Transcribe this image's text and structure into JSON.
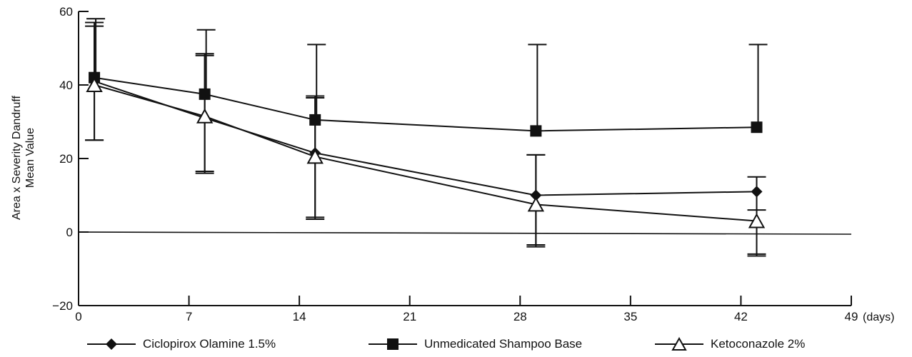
{
  "chart_data": {
    "type": "line",
    "title": "",
    "xlabel": "(days)",
    "ylabel_lines": [
      "Area x Severity Dandruff",
      "Mean Value"
    ],
    "xlim": [
      0,
      49
    ],
    "ylim": [
      -20,
      60
    ],
    "x_ticks": [
      0,
      7,
      14,
      21,
      28,
      35,
      42,
      49
    ],
    "y_ticks": [
      -20,
      0,
      20,
      40,
      60
    ],
    "x_tick_labels": [
      "0",
      "7",
      "14",
      "21",
      "28",
      "35",
      "42",
      "49"
    ],
    "y_tick_labels": [
      "−20",
      "0",
      "20",
      "40",
      "60"
    ],
    "reference_line_y": 0,
    "grid": false,
    "legend_position": "bottom",
    "series": [
      {
        "name": "Ciclopirox Olamine 1.5%",
        "marker": "diamond",
        "x": [
          1,
          8,
          15,
          29,
          43
        ],
        "y": [
          41,
          31,
          21.5,
          10,
          11
        ],
        "error_upper": [
          57,
          48,
          37,
          21,
          15
        ],
        "error_lower": [
          25,
          16,
          4,
          -3.5,
          -6
        ]
      },
      {
        "name": "Unmedicated Shampoo Base",
        "marker": "square",
        "x": [
          1,
          8,
          15,
          29,
          43
        ],
        "y": [
          42,
          37.5,
          30.5,
          27.5,
          28.5
        ],
        "error_upper": [
          58,
          55,
          51,
          51,
          51
        ]
      },
      {
        "name": "Ketoconazole  2%",
        "marker": "triangle-open",
        "x": [
          1,
          8,
          15,
          29,
          43
        ],
        "y": [
          40,
          31.5,
          20.5,
          7.5,
          3
        ],
        "error_upper": [
          56,
          48.5,
          36.5,
          21,
          6
        ],
        "error_lower": [
          25,
          16.5,
          3.5,
          -4,
          -6.5
        ]
      }
    ]
  }
}
